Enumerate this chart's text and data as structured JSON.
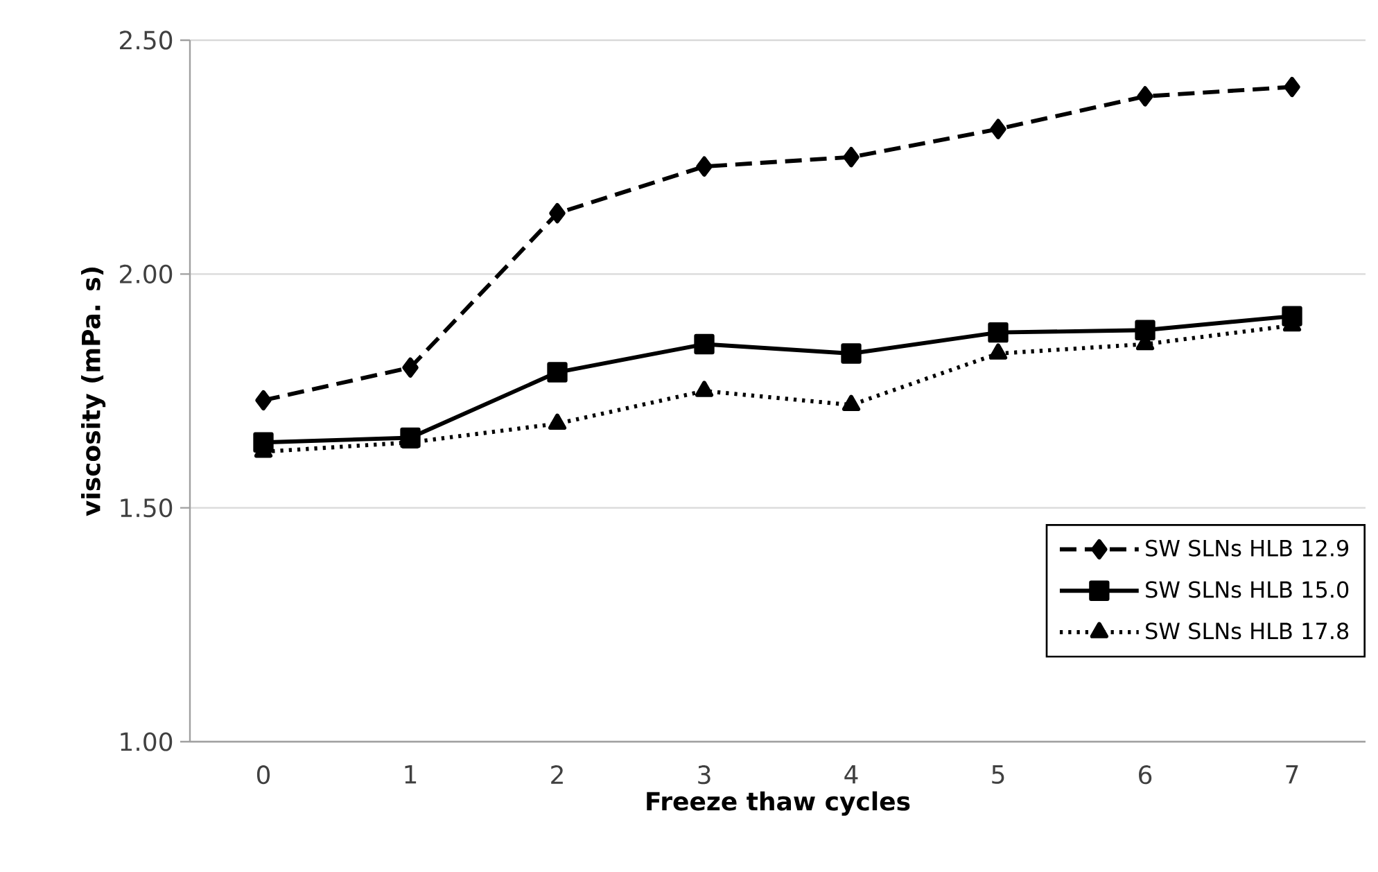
{
  "chart_data": {
    "type": "line",
    "xlabel": "Freeze thaw cycles",
    "ylabel": "viscosity (mPa. s)",
    "categories": [
      "0",
      "1",
      "2",
      "3",
      "4",
      "5",
      "6",
      "7"
    ],
    "ylim": [
      1.0,
      2.5
    ],
    "yticks": [
      {
        "value": 1.0,
        "label": "1.00"
      },
      {
        "value": 1.5,
        "label": "1.50"
      },
      {
        "value": 2.0,
        "label": "2.00"
      },
      {
        "value": 2.5,
        "label": "2.50"
      }
    ],
    "grid": "y",
    "legend": "right",
    "series": [
      {
        "name": "SW SLNs HLB 12.9",
        "color": "#000000",
        "marker": "diamond",
        "line_style": "dashed",
        "values": [
          1.73,
          1.8,
          2.13,
          2.23,
          2.25,
          2.31,
          2.38,
          2.4
        ]
      },
      {
        "name": "SW SLNs HLB 15.0",
        "color": "#000000",
        "marker": "square",
        "line_style": "solid",
        "values": [
          1.64,
          1.65,
          1.79,
          1.85,
          1.83,
          1.875,
          1.88,
          1.91
        ]
      },
      {
        "name": "SW SLNs HLB 17.8",
        "color": "#000000",
        "marker": "triangle",
        "line_style": "dotted",
        "values": [
          1.62,
          1.64,
          1.68,
          1.75,
          1.72,
          1.83,
          1.85,
          1.89
        ]
      }
    ]
  }
}
